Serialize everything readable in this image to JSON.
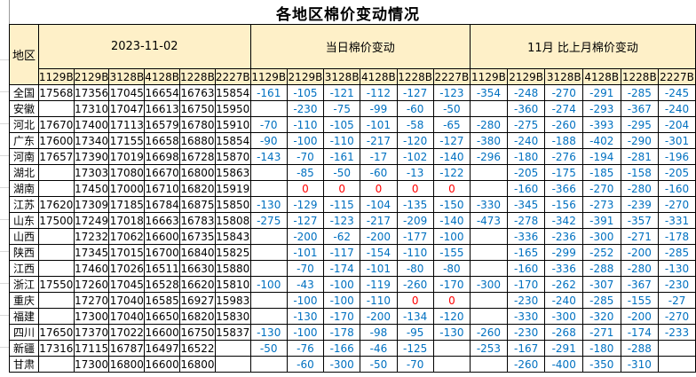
{
  "title": "各地区棉价变动情况",
  "colors": {
    "header_bg": "#FEF0C8",
    "change_text": "#0070C0",
    "zero_text": "#FF0000",
    "price_text": "#000000",
    "border": "#000000"
  },
  "table": {
    "region_header": "地区",
    "groups": [
      {
        "label": "2023-11-02"
      },
      {
        "label": "当日棉价变动"
      },
      {
        "label": "11月 比上月棉价变动"
      }
    ],
    "grades": [
      "1129B",
      "2129B",
      "3128B",
      "4128B",
      "1228B",
      "2227B"
    ],
    "rows": [
      {
        "region": "全国",
        "prices": [
          "17568",
          "17356",
          "17045",
          "16654",
          "16763",
          "15854"
        ],
        "daily": [
          "-161",
          "-105",
          "-121",
          "-112",
          "-127",
          "-123"
        ],
        "monthly": [
          "-354",
          "-248",
          "-270",
          "-291",
          "-285",
          "-245"
        ]
      },
      {
        "region": "安徽",
        "prices": [
          "",
          "17310",
          "17047",
          "16613",
          "16750",
          "15950"
        ],
        "daily": [
          "",
          "-230",
          "-75",
          "-99",
          "-60",
          "-50"
        ],
        "monthly": [
          "",
          "-360",
          "-274",
          "-293",
          "-367",
          "-240"
        ]
      },
      {
        "region": "河北",
        "prices": [
          "17670",
          "17400",
          "17113",
          "16579",
          "16780",
          "15910"
        ],
        "daily": [
          "-70",
          "-110",
          "-105",
          "-101",
          "-58",
          "-65"
        ],
        "monthly": [
          "-280",
          "-275",
          "-260",
          "-393",
          "-295",
          "-204"
        ]
      },
      {
        "region": "广东",
        "prices": [
          "17600",
          "17340",
          "17155",
          "16658",
          "16880",
          "15854"
        ],
        "daily": [
          "-90",
          "-100",
          "-110",
          "-217",
          "-120",
          "-127"
        ],
        "monthly": [
          "-380",
          "-240",
          "-188",
          "-402",
          "-290",
          "-301"
        ]
      },
      {
        "region": "河南",
        "prices": [
          "17657",
          "17390",
          "17019",
          "16698",
          "16728",
          "15870"
        ],
        "daily": [
          "-143",
          "-70",
          "-161",
          "-17",
          "-102",
          "-140"
        ],
        "monthly": [
          "-296",
          "-180",
          "-276",
          "-194",
          "-281",
          "-196"
        ]
      },
      {
        "region": "湖北",
        "prices": [
          "",
          "17303",
          "17080",
          "16670",
          "16800",
          "15863"
        ],
        "daily": [
          "",
          "-85",
          "-50",
          "-60",
          "-13",
          "-122"
        ],
        "monthly": [
          "",
          "-205",
          "-175",
          "-185",
          "-158",
          "-205"
        ]
      },
      {
        "region": "湖南",
        "prices": [
          "",
          "17450",
          "17000",
          "16710",
          "16820",
          "15919"
        ],
        "daily": [
          "",
          "0",
          "0",
          "0",
          "0",
          "0"
        ],
        "monthly": [
          "",
          "-160",
          "-366",
          "-270",
          "-280",
          "-160"
        ]
      },
      {
        "region": "江苏",
        "prices": [
          "17620",
          "17309",
          "17185",
          "16784",
          "16875",
          "15850"
        ],
        "daily": [
          "-130",
          "-129",
          "-115",
          "-104",
          "-135",
          "-150"
        ],
        "monthly": [
          "-330",
          "-345",
          "-156",
          "-273",
          "-239",
          "-270"
        ]
      },
      {
        "region": "山东",
        "prices": [
          "17500",
          "17249",
          "17018",
          "16663",
          "16783",
          "15808"
        ],
        "daily": [
          "-275",
          "-127",
          "-123",
          "-217",
          "-209",
          "-140"
        ],
        "monthly": [
          "-473",
          "-278",
          "-342",
          "-391",
          "-357",
          "-331"
        ]
      },
      {
        "region": "山西",
        "prices": [
          "",
          "17232",
          "17062",
          "16600",
          "16735",
          "15843"
        ],
        "daily": [
          "",
          "-200",
          "-62",
          "-200",
          "-177",
          "-100"
        ],
        "monthly": [
          "",
          "-336",
          "-236",
          "-300",
          "-271",
          "-178"
        ]
      },
      {
        "region": "陕西",
        "prices": [
          "",
          "17345",
          "17015",
          "16700",
          "16840",
          "15825"
        ],
        "daily": [
          "",
          "-101",
          "-117",
          "-154",
          "-110",
          "-155"
        ],
        "monthly": [
          "",
          "-165",
          "-299",
          "-252",
          "-200",
          "-285"
        ]
      },
      {
        "region": "江西",
        "prices": [
          "",
          "17460",
          "17026",
          "16511",
          "16630",
          "15880"
        ],
        "daily": [
          "",
          "-70",
          "-174",
          "-101",
          "-80",
          "-80"
        ],
        "monthly": [
          "",
          "-160",
          "-336",
          "-288",
          "-280",
          "-130"
        ]
      },
      {
        "region": "浙江",
        "prices": [
          "17550",
          "17260",
          "17045",
          "16528",
          "16620",
          "15810"
        ],
        "daily": [
          "-100",
          "-43",
          "-100",
          "-119",
          "-260",
          "-170"
        ],
        "monthly": [
          "-300",
          "-170",
          "-262",
          "-307",
          "-367",
          "-230"
        ]
      },
      {
        "region": "重庆",
        "prices": [
          "",
          "17270",
          "17040",
          "16585",
          "16927",
          "15983"
        ],
        "daily": [
          "",
          "-100",
          "-100",
          "-110",
          "0",
          "0"
        ],
        "monthly": [
          "",
          "-230",
          "-240",
          "-285",
          "-155",
          "-27"
        ]
      },
      {
        "region": "福建",
        "prices": [
          "",
          "17300",
          "17040",
          "16650",
          "16820",
          "15830"
        ],
        "daily": [
          "",
          "-130",
          "-170",
          "-200",
          "-134",
          "-120"
        ],
        "monthly": [
          "",
          "-330",
          "-300",
          "-320",
          "-200",
          "-270"
        ]
      },
      {
        "region": "四川",
        "prices": [
          "17650",
          "17370",
          "17022",
          "16600",
          "16750",
          "15837"
        ],
        "daily": [
          "-130",
          "-100",
          "-178",
          "-98",
          "-95",
          "-130"
        ],
        "monthly": [
          "-260",
          "-230",
          "-268",
          "-271",
          "-174",
          "-233"
        ]
      },
      {
        "region": "新疆",
        "prices": [
          "17316",
          "17115",
          "16787",
          "16497",
          "16522",
          ""
        ],
        "daily": [
          "-50",
          "-76",
          "-166",
          "-46",
          "-125",
          ""
        ],
        "monthly": [
          "-253",
          "-167",
          "-291",
          "-180",
          "-288",
          ""
        ]
      },
      {
        "region": "甘肃",
        "prices": [
          "",
          "17300",
          "16800",
          "16600",
          "16800",
          ""
        ],
        "daily": [
          "",
          "-60",
          "-300",
          "-50",
          "-70",
          ""
        ],
        "monthly": [
          "",
          "-260",
          "-400",
          "-350",
          "-310",
          ""
        ]
      }
    ]
  }
}
